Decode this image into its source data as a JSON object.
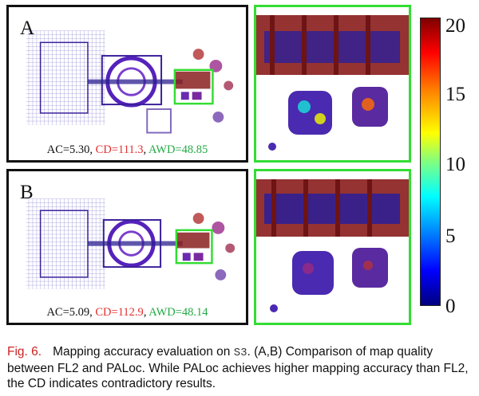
{
  "colors": {
    "ac": "#111111",
    "cd": "#e03030",
    "awd": "#22aa44",
    "zoom_box": "#33dd33",
    "caption_label": "#cc2222"
  },
  "panels": [
    {
      "label": "A",
      "metrics": {
        "ac": "AC=5.30",
        "cd": "CD=111.3",
        "awd": "AWD=48.85",
        "sep": ", "
      }
    },
    {
      "label": "B",
      "metrics": {
        "ac": "AC=5.09",
        "cd": "CD=112.9",
        "awd": "AWD=48.14",
        "sep": ", "
      }
    }
  ],
  "colorbar": {
    "colormap": "jet",
    "min": 0,
    "max": 20,
    "ticks": [
      "20",
      "15",
      "10",
      "5",
      "0"
    ]
  },
  "caption": {
    "label": "Fig. 6.",
    "text_before": "Mapping accuracy evaluation on ",
    "dataset": "S3",
    "text_after": ". (A,B) Comparison of map quality between FL2 and PALoc. While PALoc achieves higher mapping accuracy than FL2, the CD indicates contradictory results."
  }
}
